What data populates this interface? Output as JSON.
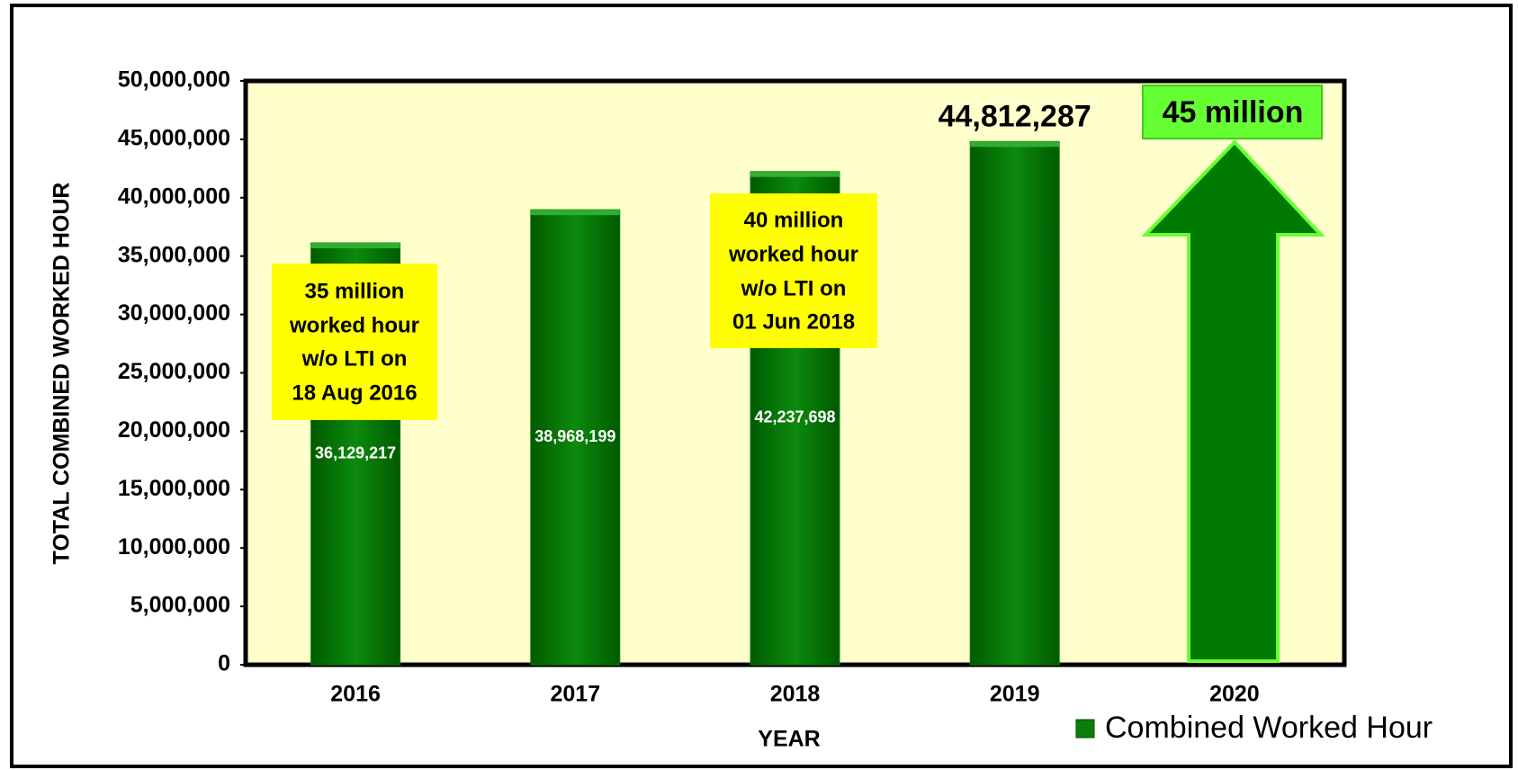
{
  "chart_data": {
    "type": "bar",
    "x_label": "YEAR",
    "y_label": "TOTAL COMBINED WORKED HOUR",
    "categories": [
      "2016",
      "2017",
      "2018",
      "2019",
      "2020"
    ],
    "series": [
      {
        "name": "Combined Worked Hour",
        "color": "#0a7d0a",
        "values": [
          36129217,
          38968199,
          42237698,
          44812287,
          null
        ],
        "value_labels": [
          "36,129,217",
          "38,968,199",
          "42,237,698",
          "44,812,287",
          null
        ]
      }
    ],
    "ylim": [
      0,
      50000000
    ],
    "yticks": [
      0,
      {
        "value": 5000000,
        "label": "5,000,000"
      },
      {
        "value": 10000000,
        "label": "10,000,000"
      },
      {
        "value": 15000000,
        "label": "15,000,000"
      },
      {
        "value": 20000000,
        "label": "20,000,000"
      },
      {
        "value": 25000000,
        "label": "25,000,000"
      },
      {
        "value": 30000000,
        "label": "30,000,000"
      },
      {
        "value": 35000000,
        "label": "35,000,000"
      },
      {
        "value": 40000000,
        "label": "40,000,000"
      },
      {
        "value": 45000000,
        "label": "45,000,000"
      },
      {
        "value": 50000000,
        "label": "50,000,000"
      }
    ],
    "legend": "bottom-right",
    "annotations": [
      [
        "35 million",
        "worked hour",
        "w/o LTI on",
        "18 Aug 2016"
      ],
      [
        "40 million",
        "worked hour",
        "w/o LTI on",
        "01 Jun 2018"
      ],
      [
        "45 million"
      ]
    ]
  }
}
